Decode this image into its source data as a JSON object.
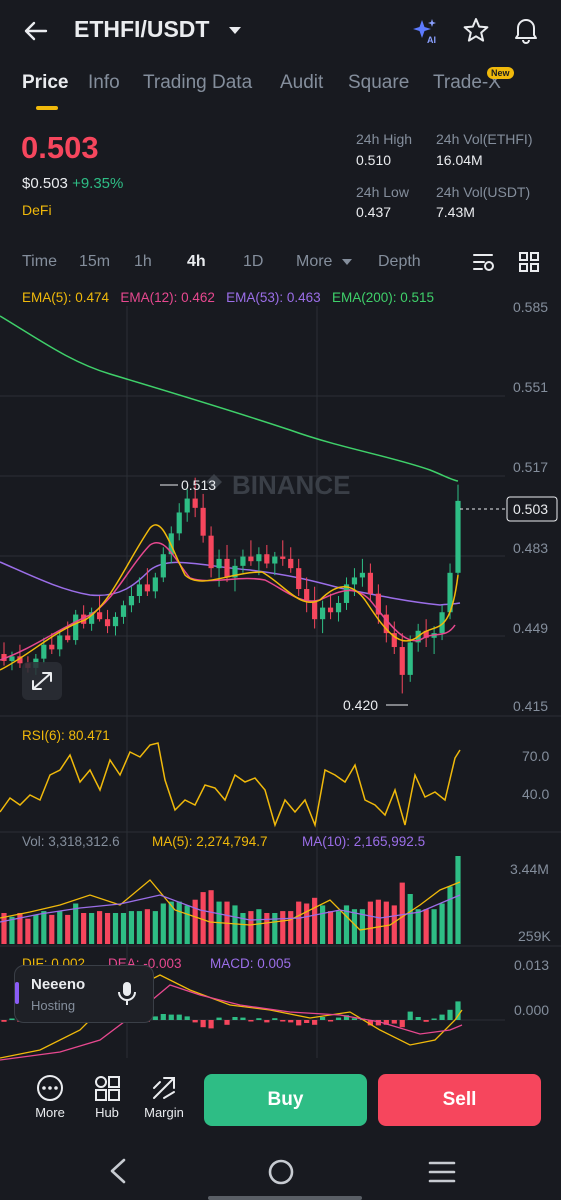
{
  "header": {
    "pair": "ETHFI/USDT"
  },
  "tabs": [
    "Price",
    "Info",
    "Trading Data",
    "Audit",
    "Square",
    "Trade-X"
  ],
  "new_badge": "New",
  "price": {
    "last": "0.503",
    "usd": "$0.503",
    "change": "+9.35%",
    "tag": "DeFi"
  },
  "stats": {
    "high_label": "24h High",
    "high": "0.510",
    "low_label": "24h Low",
    "low": "0.437",
    "vol_base_label": "24h Vol(ETHFI)",
    "vol_base": "16.04M",
    "vol_quote_label": "24h Vol(USDT)",
    "vol_quote": "7.43M"
  },
  "timeframes": [
    "Time",
    "15m",
    "1h",
    "4h",
    "1D",
    "More",
    "Depth"
  ],
  "ema": {
    "e5": "EMA(5): 0.474",
    "e12": "EMA(12): 0.462",
    "e53": "EMA(53): 0.463",
    "e200": "EMA(200): 0.515"
  },
  "price_axis": [
    "0.585",
    "0.551",
    "0.517",
    "0.483",
    "0.449",
    "0.415"
  ],
  "current_price_tag": "0.503",
  "high_marker": "0.513",
  "low_marker": "0.420",
  "watermark": "BINANCE",
  "rsi": {
    "label": "RSI(6): 80.471",
    "axis": [
      "70.0",
      "40.0"
    ]
  },
  "vol": {
    "label": "Vol: 3,318,312.6",
    "ma5": "MA(5): 2,274,794.7",
    "ma10": "MA(10): 2,165,992.5",
    "axis": [
      "3.44M",
      "259K"
    ]
  },
  "macd": {
    "dif": "DIF: 0.002",
    "dea": "DEA: -0.003",
    "macd": "MACD: 0.005",
    "axis": [
      "0.013",
      "0.000"
    ]
  },
  "host": {
    "name": "Neeeno",
    "role": "Hosting"
  },
  "bottom": {
    "more": "More",
    "hub": "Hub",
    "margin": "Margin",
    "buy": "Buy",
    "sell": "Sell"
  },
  "colors": {
    "up": "#2ebd85",
    "down": "#f6465d",
    "accent": "#f0b90b",
    "bg": "#181a20"
  },
  "chart_data": {
    "type": "candlestick",
    "title": "",
    "timeframe": "4h",
    "ylim": [
      0.412,
      0.587
    ],
    "ohlc": [
      [
        0.437,
        0.442,
        0.432,
        0.434
      ],
      [
        0.434,
        0.438,
        0.43,
        0.436
      ],
      [
        0.436,
        0.441,
        0.431,
        0.433
      ],
      [
        0.433,
        0.436,
        0.429,
        0.431
      ],
      [
        0.431,
        0.437,
        0.428,
        0.435
      ],
      [
        0.435,
        0.444,
        0.433,
        0.441
      ],
      [
        0.441,
        0.446,
        0.437,
        0.439
      ],
      [
        0.439,
        0.447,
        0.436,
        0.445
      ],
      [
        0.445,
        0.451,
        0.442,
        0.443
      ],
      [
        0.443,
        0.456,
        0.441,
        0.454
      ],
      [
        0.454,
        0.458,
        0.448,
        0.45
      ],
      [
        0.45,
        0.457,
        0.447,
        0.455
      ],
      [
        0.455,
        0.462,
        0.451,
        0.452
      ],
      [
        0.452,
        0.456,
        0.446,
        0.449
      ],
      [
        0.449,
        0.455,
        0.445,
        0.453
      ],
      [
        0.453,
        0.46,
        0.45,
        0.458
      ],
      [
        0.458,
        0.466,
        0.455,
        0.462
      ],
      [
        0.462,
        0.47,
        0.459,
        0.467
      ],
      [
        0.467,
        0.474,
        0.462,
        0.464
      ],
      [
        0.464,
        0.472,
        0.461,
        0.47
      ],
      [
        0.47,
        0.483,
        0.468,
        0.48
      ],
      [
        0.48,
        0.492,
        0.476,
        0.489
      ],
      [
        0.489,
        0.502,
        0.486,
        0.498
      ],
      [
        0.498,
        0.508,
        0.494,
        0.504
      ],
      [
        0.504,
        0.513,
        0.496,
        0.5
      ],
      [
        0.5,
        0.506,
        0.485,
        0.488
      ],
      [
        0.488,
        0.492,
        0.47,
        0.474
      ],
      [
        0.474,
        0.482,
        0.466,
        0.478
      ],
      [
        0.478,
        0.484,
        0.468,
        0.47
      ],
      [
        0.47,
        0.478,
        0.464,
        0.475
      ],
      [
        0.475,
        0.482,
        0.472,
        0.479
      ],
      [
        0.479,
        0.486,
        0.475,
        0.477
      ],
      [
        0.477,
        0.483,
        0.471,
        0.48
      ],
      [
        0.48,
        0.484,
        0.474,
        0.476
      ],
      [
        0.476,
        0.481,
        0.471,
        0.479
      ],
      [
        0.479,
        0.486,
        0.475,
        0.478
      ],
      [
        0.478,
        0.483,
        0.472,
        0.474
      ],
      [
        0.474,
        0.478,
        0.462,
        0.465
      ],
      [
        0.465,
        0.47,
        0.455,
        0.46
      ],
      [
        0.46,
        0.466,
        0.448,
        0.452
      ],
      [
        0.452,
        0.46,
        0.446,
        0.457
      ],
      [
        0.457,
        0.463,
        0.452,
        0.455
      ],
      [
        0.455,
        0.462,
        0.451,
        0.459
      ],
      [
        0.459,
        0.47,
        0.456,
        0.467
      ],
      [
        0.467,
        0.474,
        0.462,
        0.47
      ],
      [
        0.47,
        0.478,
        0.466,
        0.472
      ],
      [
        0.472,
        0.476,
        0.46,
        0.463
      ],
      [
        0.463,
        0.467,
        0.45,
        0.454
      ],
      [
        0.454,
        0.458,
        0.442,
        0.446
      ],
      [
        0.446,
        0.451,
        0.437,
        0.44
      ],
      [
        0.44,
        0.446,
        0.42,
        0.428
      ],
      [
        0.428,
        0.445,
        0.425,
        0.442
      ],
      [
        0.442,
        0.45,
        0.438,
        0.447
      ],
      [
        0.447,
        0.452,
        0.44,
        0.444
      ],
      [
        0.444,
        0.449,
        0.437,
        0.446
      ],
      [
        0.446,
        0.458,
        0.443,
        0.455
      ],
      [
        0.455,
        0.476,
        0.452,
        0.472
      ],
      [
        0.472,
        0.51,
        0.47,
        0.503
      ]
    ]
  }
}
